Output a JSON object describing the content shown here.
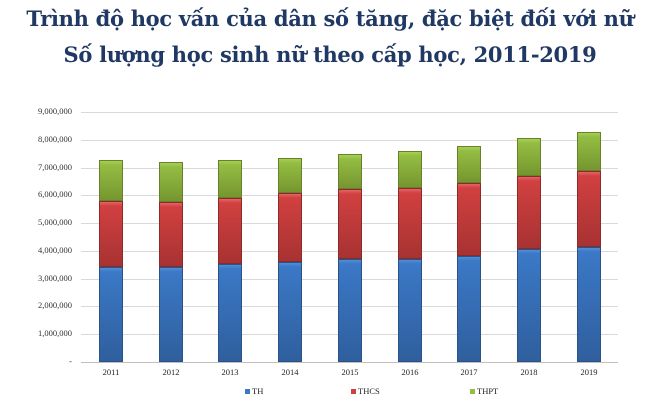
{
  "title_line1": "Trình độ học vấn của dân số tăng, đặc biệt đối với nữ",
  "title_line2": "Số lượng học sinh nữ theo cấp học, 2011-2019",
  "y_ticks": [
    "9,000,000",
    "8,000,000",
    "7,000,000",
    "6,000,000",
    "5,000,000",
    "4,000,000",
    "3,000,000",
    "2,000,000",
    "1,000,000",
    "-"
  ],
  "x_labels": [
    "2011",
    "2012",
    "2013",
    "2014",
    "2015",
    "2016",
    "2017",
    "2018",
    "2019"
  ],
  "legend": [
    {
      "label": "TH",
      "color": "#3b78c6"
    },
    {
      "label": "THCS",
      "color": "#d14040"
    },
    {
      "label": "THPT",
      "color": "#94bd43"
    }
  ],
  "chart_data": {
    "type": "bar",
    "stacked": true,
    "title": "Số lượng học sinh nữ theo cấp học, 2011-2019",
    "suptitle": "Trình độ học vấn của dân số tăng, đặc biệt đối với nữ",
    "xlabel": "",
    "ylabel": "",
    "categories": [
      "2011",
      "2012",
      "2013",
      "2014",
      "2015",
      "2016",
      "2017",
      "2018",
      "2019"
    ],
    "series": [
      {
        "name": "TH",
        "color": "#3b78c6",
        "values": [
          3420000,
          3420000,
          3530000,
          3600000,
          3710000,
          3710000,
          3810000,
          4060000,
          4140000
        ]
      },
      {
        "name": "THCS",
        "color": "#d14040",
        "values": [
          2370000,
          2340000,
          2370000,
          2480000,
          2510000,
          2550000,
          2630000,
          2630000,
          2730000
        ]
      },
      {
        "name": "THPT",
        "color": "#94bd43",
        "values": [
          1480000,
          1430000,
          1370000,
          1260000,
          1260000,
          1330000,
          1330000,
          1370000,
          1400000
        ]
      }
    ],
    "ylim": [
      0,
      9000000
    ],
    "y_tick_step": 1000000,
    "grid": true,
    "legend_position": "bottom"
  }
}
